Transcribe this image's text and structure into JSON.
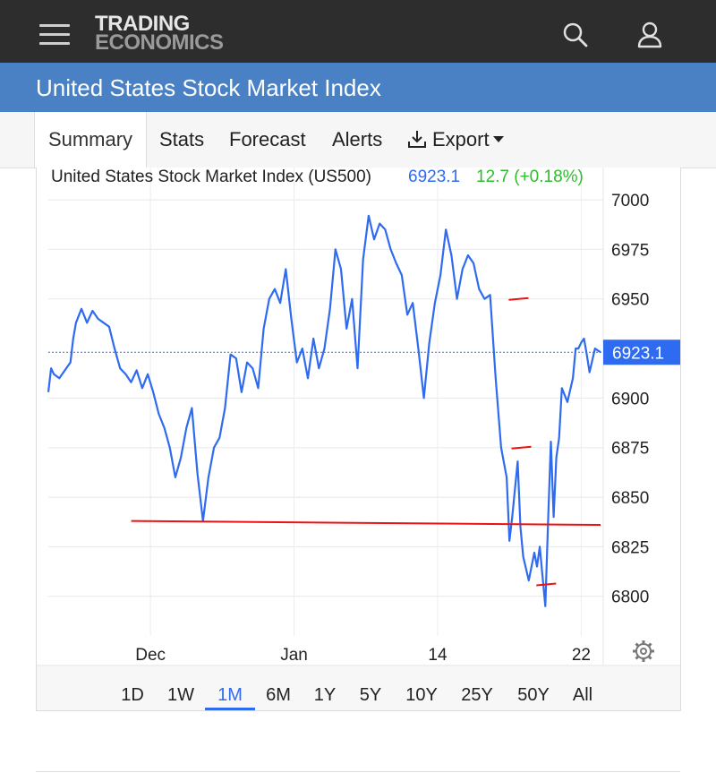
{
  "header": {
    "logo_line1": "TRADING",
    "logo_line2": "ECONOMICS",
    "menu_icon": "hamburger-menu-icon",
    "search_icon": "search-icon",
    "user_icon": "user-icon"
  },
  "page": {
    "title": "United States Stock Market Index"
  },
  "tabs": [
    {
      "label": "Summary",
      "active": true
    },
    {
      "label": "Stats"
    },
    {
      "label": "Forecast"
    },
    {
      "label": "Alerts"
    },
    {
      "label": "Export",
      "icon": "download-icon",
      "dropdown": true
    }
  ],
  "quote": {
    "name": "United States Stock Market Index (US500)",
    "price": "6923.1",
    "change": "12.7 (+0.18%)",
    "price_color": "#2f6bf0",
    "change_color": "#2dbd2d",
    "current_price_label": "6923.1"
  },
  "ranges": [
    "1D",
    "1W",
    "1M",
    "6M",
    "1Y",
    "5Y",
    "10Y",
    "25Y",
    "50Y",
    "All"
  ],
  "active_range": "1M",
  "settings_icon": "gear-icon",
  "chart_data": {
    "type": "line",
    "title": "United States Stock Market Index (US500)",
    "xlabel": "",
    "ylabel": "",
    "y_ticks": [
      7000,
      6975,
      6950,
      6900,
      6875,
      6850,
      6825,
      6800
    ],
    "y_tick_labels": [
      "7000",
      "6975",
      "6950",
      "6900",
      "6875",
      "6850",
      "6825",
      "6800"
    ],
    "ylim": [
      6780,
      7005
    ],
    "x_tick_labels": [
      "Dec",
      "Jan",
      "14",
      "22"
    ],
    "x_tick_positions": [
      0.185,
      0.445,
      0.705,
      0.965
    ],
    "grid": true,
    "line_color": "#2f6bf0",
    "last_value": 6923.1,
    "series": [
      {
        "points": [
          [
            0,
            6903
          ],
          [
            0.005,
            6915
          ],
          [
            0.01,
            6912
          ],
          [
            0.02,
            6910
          ],
          [
            0.03,
            6914
          ],
          [
            0.04,
            6918
          ],
          [
            0.045,
            6930
          ],
          [
            0.05,
            6938
          ],
          [
            0.06,
            6945
          ],
          [
            0.07,
            6938
          ],
          [
            0.08,
            6944
          ],
          [
            0.09,
            6940
          ],
          [
            0.1,
            6938
          ],
          [
            0.11,
            6936
          ],
          [
            0.12,
            6925
          ],
          [
            0.13,
            6915
          ],
          [
            0.14,
            6912
          ],
          [
            0.15,
            6908
          ],
          [
            0.16,
            6914
          ],
          [
            0.17,
            6905
          ],
          [
            0.18,
            6912
          ],
          [
            0.19,
            6903
          ],
          [
            0.2,
            6892
          ],
          [
            0.21,
            6885
          ],
          [
            0.22,
            6875
          ],
          [
            0.23,
            6860
          ],
          [
            0.24,
            6870
          ],
          [
            0.25,
            6885
          ],
          [
            0.26,
            6895
          ],
          [
            0.27,
            6862
          ],
          [
            0.28,
            6838
          ],
          [
            0.29,
            6860
          ],
          [
            0.3,
            6875
          ],
          [
            0.31,
            6880
          ],
          [
            0.32,
            6895
          ],
          [
            0.33,
            6922
          ],
          [
            0.34,
            6920
          ],
          [
            0.35,
            6903
          ],
          [
            0.36,
            6918
          ],
          [
            0.37,
            6915
          ],
          [
            0.38,
            6905
          ],
          [
            0.39,
            6935
          ],
          [
            0.4,
            6950
          ],
          [
            0.41,
            6955
          ],
          [
            0.42,
            6948
          ],
          [
            0.43,
            6965
          ],
          [
            0.44,
            6940
          ],
          [
            0.45,
            6918
          ],
          [
            0.46,
            6925
          ],
          [
            0.47,
            6910
          ],
          [
            0.48,
            6930
          ],
          [
            0.49,
            6915
          ],
          [
            0.5,
            6925
          ],
          [
            0.51,
            6945
          ],
          [
            0.52,
            6975
          ],
          [
            0.53,
            6965
          ],
          [
            0.54,
            6935
          ],
          [
            0.55,
            6950
          ],
          [
            0.56,
            6915
          ],
          [
            0.57,
            6970
          ],
          [
            0.58,
            6992
          ],
          [
            0.59,
            6980
          ],
          [
            0.6,
            6988
          ],
          [
            0.61,
            6985
          ],
          [
            0.62,
            6975
          ],
          [
            0.63,
            6968
          ],
          [
            0.64,
            6962
          ],
          [
            0.65,
            6942
          ],
          [
            0.66,
            6948
          ],
          [
            0.67,
            6925
          ],
          [
            0.68,
            6900
          ],
          [
            0.69,
            6928
          ],
          [
            0.7,
            6948
          ],
          [
            0.71,
            6962
          ],
          [
            0.72,
            6985
          ],
          [
            0.73,
            6972
          ],
          [
            0.74,
            6950
          ],
          [
            0.75,
            6965
          ],
          [
            0.76,
            6972
          ],
          [
            0.77,
            6968
          ],
          [
            0.78,
            6955
          ],
          [
            0.79,
            6950
          ],
          [
            0.8,
            6952
          ],
          [
            0.81,
            6910
          ],
          [
            0.82,
            6875
          ],
          [
            0.83,
            6860
          ],
          [
            0.835,
            6828
          ],
          [
            0.84,
            6840
          ],
          [
            0.85,
            6868
          ],
          [
            0.855,
            6835
          ],
          [
            0.86,
            6820
          ],
          [
            0.87,
            6808
          ],
          [
            0.88,
            6822
          ],
          [
            0.885,
            6815
          ],
          [
            0.89,
            6825
          ],
          [
            0.9,
            6795
          ],
          [
            0.905,
            6838
          ],
          [
            0.91,
            6878
          ],
          [
            0.915,
            6840
          ],
          [
            0.92,
            6870
          ],
          [
            0.925,
            6880
          ],
          [
            0.93,
            6905
          ],
          [
            0.94,
            6898
          ],
          [
            0.95,
            6910
          ],
          [
            0.955,
            6925
          ],
          [
            0.96,
            6925
          ],
          [
            0.965,
            6928
          ],
          [
            0.97,
            6930
          ],
          [
            0.975,
            6922
          ],
          [
            0.98,
            6913
          ],
          [
            0.99,
            6925
          ],
          [
            1,
            6923.1
          ]
        ]
      }
    ],
    "annotations": [
      {
        "type": "trendline",
        "color": "#e11",
        "from": [
          0.15,
          6838
        ],
        "to": [
          1.0,
          6836
        ]
      },
      {
        "type": "marker",
        "color": "#e11",
        "at": [
          0.85,
          6950
        ]
      },
      {
        "type": "marker",
        "color": "#e11",
        "at": [
          0.855,
          6875
        ]
      },
      {
        "type": "marker",
        "color": "#e11",
        "at": [
          0.9,
          6806
        ]
      }
    ]
  }
}
